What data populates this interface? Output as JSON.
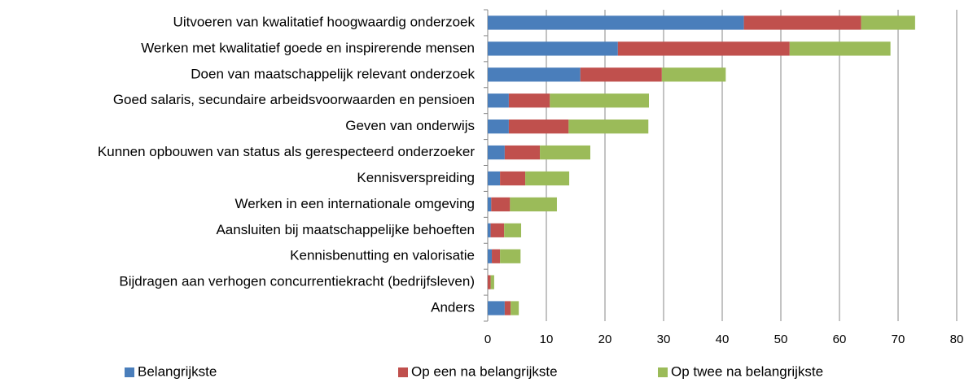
{
  "chart_data": {
    "type": "stacked_barh",
    "categories": [
      "Uitvoeren van kwalitatief hoogwaardig onderzoek",
      "Werken met kwalitatief goede en inspirerende mensen",
      "Doen van maatschappelijk relevant onderzoek",
      "Goed salaris, secundaire arbeidsvoorwaarden en pensioen",
      "Geven van onderwijs",
      "Kunnen opbouwen van status als gerespecteerd onderzoeker",
      "Kennisverspreiding",
      "Werken in een internationale omgeving",
      "Aansluiten bij maatschappelijke behoeften",
      "Kennisbenutting en valorisatie",
      "Bijdragen aan verhogen concurrentiekracht (bedrijfsleven)",
      "Anders"
    ],
    "series": [
      {
        "name": "Belangrijkste",
        "color": "#4a7ebb",
        "values": [
          43.7,
          22.2,
          15.8,
          3.6,
          3.6,
          2.9,
          2.1,
          0.6,
          0.5,
          0.7,
          0,
          2.9
        ]
      },
      {
        "name": "Op een na belangrijkste",
        "color": "#c0504d",
        "values": [
          20.0,
          29.3,
          13.9,
          7.0,
          10.2,
          6.0,
          4.3,
          3.2,
          2.3,
          1.4,
          0.5,
          1.0
        ]
      },
      {
        "name": "Op twee na belangrijkste",
        "color": "#9bbb59",
        "values": [
          9.2,
          17.2,
          10.9,
          16.9,
          13.6,
          8.6,
          7.5,
          8.0,
          2.9,
          3.5,
          0.6,
          1.4
        ]
      }
    ],
    "xlim": [
      0,
      80
    ],
    "xticks": [
      0,
      10,
      20,
      30,
      40,
      50,
      60,
      70,
      80
    ],
    "grid": true,
    "legend": "bottom"
  }
}
